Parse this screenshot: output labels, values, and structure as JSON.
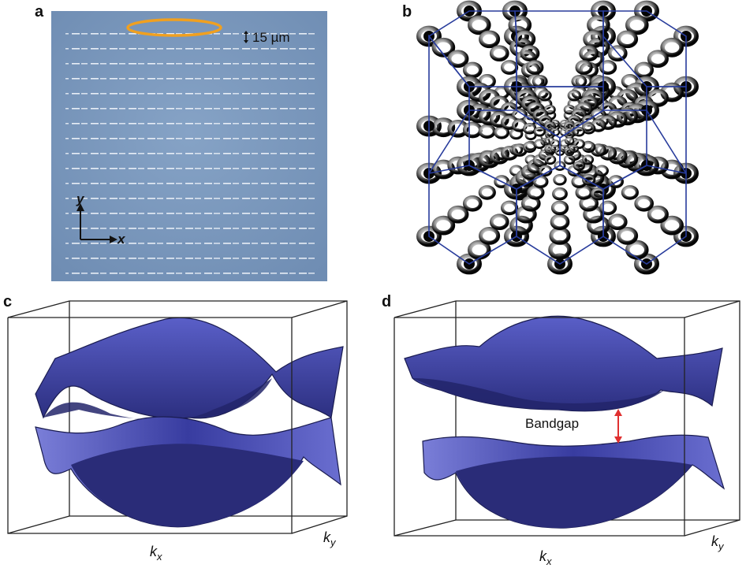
{
  "figure": {
    "panels": [
      {
        "label": "a",
        "scale_bar": "15 µm",
        "axis_x": "x",
        "axis_y": "y"
      },
      {
        "label": "b"
      },
      {
        "label": "c",
        "axis_kx": "k",
        "axis_kx_sub": "x",
        "axis_ky": "k",
        "axis_ky_sub": "y"
      },
      {
        "label": "d",
        "annotation": "Bandgap",
        "axis_kx": "k",
        "axis_kx_sub": "x",
        "axis_ky": "k",
        "axis_ky_sub": "y"
      }
    ]
  },
  "colors": {
    "micrograph_bg": "#7d9bc0",
    "highlight_ellipse": "#f0a020",
    "band_surface": "#4a4fb0",
    "band_dark": "#22246a",
    "hex_lattice": "#283c9c",
    "gap_arrow": "#e03030"
  }
}
